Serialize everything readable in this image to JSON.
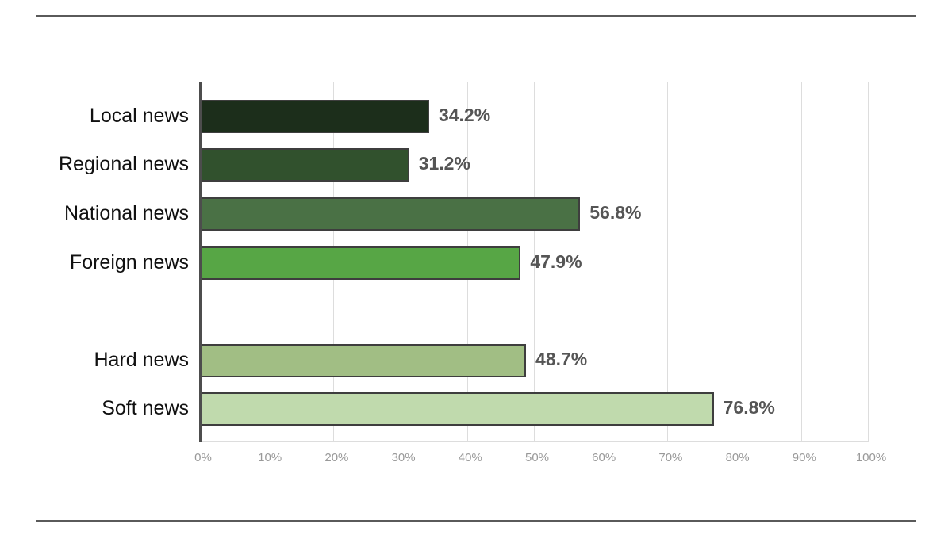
{
  "chart_data": {
    "type": "bar",
    "orientation": "horizontal",
    "title": "",
    "xlabel": "",
    "ylabel": "",
    "categories": [
      "Local news",
      "Regional news",
      "National news",
      "Foreign news",
      "Hard news",
      "Soft news"
    ],
    "values": [
      34.2,
      31.2,
      56.8,
      47.9,
      48.7,
      76.8
    ],
    "value_labels": [
      "34.2%",
      "31.2%",
      "56.8%",
      "47.9%",
      "48.7%",
      "76.8%"
    ],
    "bar_colors": [
      "#1c2e1b",
      "#31512d",
      "#4a7145",
      "#57a645",
      "#a1be84",
      "#c0daad"
    ],
    "groups": [
      [
        "Local news",
        "Regional news",
        "National news",
        "Foreign news"
      ],
      [
        "Hard news",
        "Soft news"
      ]
    ],
    "xlim": [
      0,
      100
    ],
    "x_ticks": [
      "0%",
      "10%",
      "20%",
      "30%",
      "40%",
      "50%",
      "60%",
      "70%",
      "80%",
      "90%",
      "100%"
    ],
    "grid": true,
    "legend": null
  }
}
